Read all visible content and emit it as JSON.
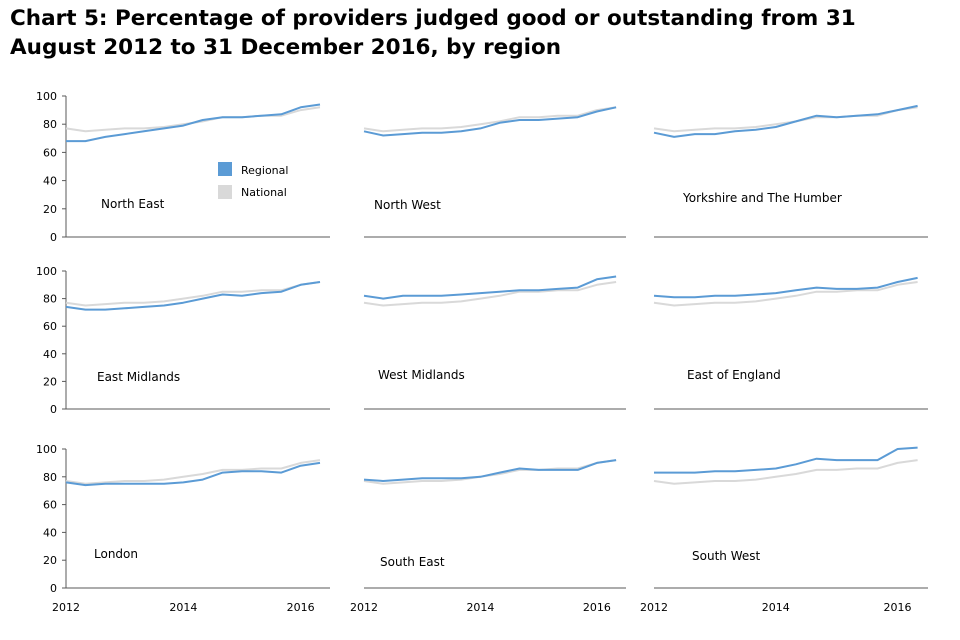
{
  "title": "Chart 5: Percentage of providers judged good or outstanding from 31 August 2012 to 31 December 2016, by region",
  "chart_data": {
    "type": "line",
    "layout": "small-multiples 3x3",
    "ylim": [
      0,
      100
    ],
    "yticks": [
      "0",
      "20",
      "40",
      "60",
      "80",
      "100"
    ],
    "xlim": [
      2012,
      2016.5
    ],
    "xticks": [
      {
        "value": 2012,
        "label": "2012"
      },
      {
        "value": 2014,
        "label": "2014"
      },
      {
        "value": 2016,
        "label": "2016"
      }
    ],
    "x": [
      2012.0,
      2012.33,
      2012.67,
      2013.0,
      2013.33,
      2013.67,
      2014.0,
      2014.33,
      2014.67,
      2015.0,
      2015.33,
      2015.67,
      2016.0,
      2016.33
    ],
    "legend": {
      "position": "inside first panel",
      "entries": [
        {
          "label": "Regional",
          "color": "#5b9bd5"
        },
        {
          "label": "National",
          "color": "#d9d9d9"
        }
      ]
    },
    "colors": {
      "regional": "#5b9bd5",
      "national": "#d9d9d9"
    },
    "national": [
      77,
      75,
      76,
      77,
      77,
      78,
      80,
      82,
      85,
      85,
      86,
      86,
      90,
      92
    ],
    "panels": [
      {
        "region": "North East",
        "regional": [
          68,
          68,
          71,
          73,
          75,
          77,
          79,
          83,
          85,
          85,
          86,
          87,
          92,
          94
        ]
      },
      {
        "region": "North West",
        "regional": [
          75,
          72,
          73,
          74,
          74,
          75,
          77,
          81,
          83,
          83,
          84,
          85,
          89,
          92
        ]
      },
      {
        "region": "Yorkshire and The Humber",
        "regional": [
          74,
          71,
          73,
          73,
          75,
          76,
          78,
          82,
          86,
          85,
          86,
          87,
          90,
          93
        ]
      },
      {
        "region": "East Midlands",
        "regional": [
          74,
          72,
          72,
          73,
          74,
          75,
          77,
          80,
          83,
          82,
          84,
          85,
          90,
          92
        ]
      },
      {
        "region": "West Midlands",
        "regional": [
          82,
          80,
          82,
          82,
          82,
          83,
          84,
          85,
          86,
          86,
          87,
          88,
          94,
          96
        ]
      },
      {
        "region": "East of England",
        "regional": [
          82,
          81,
          81,
          82,
          82,
          83,
          84,
          86,
          88,
          87,
          87,
          88,
          92,
          95
        ]
      },
      {
        "region": "London",
        "regional": [
          76,
          74,
          75,
          75,
          75,
          75,
          76,
          78,
          83,
          84,
          84,
          83,
          88,
          90
        ]
      },
      {
        "region": "South East",
        "regional": [
          78,
          77,
          78,
          79,
          79,
          79,
          80,
          83,
          86,
          85,
          85,
          85,
          90,
          92
        ]
      },
      {
        "region": "South West",
        "regional": [
          83,
          83,
          83,
          84,
          84,
          85,
          86,
          89,
          93,
          92,
          92,
          92,
          100,
          101
        ]
      }
    ]
  }
}
